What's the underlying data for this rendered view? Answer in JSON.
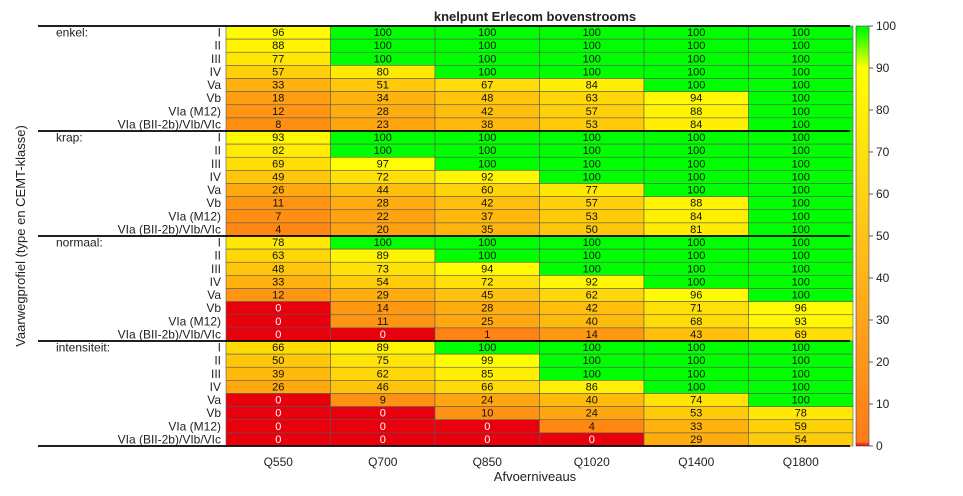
{
  "chart_data": {
    "type": "heatmap",
    "title": "knelpunt Erlecom bovenstrooms",
    "xlabel": "Afvoerniveaus",
    "ylabel": "Vaarwegprofiel (type en CEMT-klasse)",
    "categories": [
      "Q550",
      "Q700",
      "Q850",
      "Q1020",
      "Q1400",
      "Q1800"
    ],
    "colorbar": {
      "min": 0,
      "max": 100,
      "ticks": [
        0,
        10,
        20,
        30,
        40,
        50,
        60,
        70,
        80,
        90,
        100
      ],
      "colors": [
        "#e8000d",
        "#ff8c1a",
        "#ffff00",
        "#00ff00"
      ]
    },
    "groups": [
      {
        "name": "enkel:",
        "rows": [
          {
            "label": "I",
            "values": [
              96,
              100,
              100,
              100,
              100,
              100
            ]
          },
          {
            "label": "II",
            "values": [
              88,
              100,
              100,
              100,
              100,
              100
            ]
          },
          {
            "label": "III",
            "values": [
              77,
              100,
              100,
              100,
              100,
              100
            ]
          },
          {
            "label": "IV",
            "values": [
              57,
              80,
              100,
              100,
              100,
              100
            ]
          },
          {
            "label": "Va",
            "values": [
              33,
              51,
              67,
              84,
              100,
              100
            ]
          },
          {
            "label": "Vb",
            "values": [
              18,
              34,
              48,
              63,
              94,
              100
            ]
          },
          {
            "label": "VIa (M12)",
            "values": [
              12,
              28,
              42,
              57,
              88,
              100
            ]
          },
          {
            "label": "VIa (BII-2b)/VIb/VIc",
            "values": [
              8,
              23,
              38,
              53,
              84,
              100
            ]
          }
        ]
      },
      {
        "name": "krap:",
        "rows": [
          {
            "label": "I",
            "values": [
              93,
              100,
              100,
              100,
              100,
              100
            ]
          },
          {
            "label": "II",
            "values": [
              82,
              100,
              100,
              100,
              100,
              100
            ]
          },
          {
            "label": "III",
            "values": [
              69,
              97,
              100,
              100,
              100,
              100
            ]
          },
          {
            "label": "IV",
            "values": [
              49,
              72,
              92,
              100,
              100,
              100
            ]
          },
          {
            "label": "Va",
            "values": [
              26,
              44,
              60,
              77,
              100,
              100
            ]
          },
          {
            "label": "Vb",
            "values": [
              11,
              28,
              42,
              57,
              88,
              100
            ]
          },
          {
            "label": "VIa (M12)",
            "values": [
              7,
              22,
              37,
              53,
              84,
              100
            ]
          },
          {
            "label": "VIa (BII-2b)/VIb/VIc",
            "values": [
              4,
              20,
              35,
              50,
              81,
              100
            ]
          }
        ]
      },
      {
        "name": "normaal:",
        "rows": [
          {
            "label": "I",
            "values": [
              78,
              100,
              100,
              100,
              100,
              100
            ]
          },
          {
            "label": "II",
            "values": [
              63,
              89,
              100,
              100,
              100,
              100
            ]
          },
          {
            "label": "III",
            "values": [
              48,
              73,
              94,
              100,
              100,
              100
            ]
          },
          {
            "label": "IV",
            "values": [
              33,
              54,
              72,
              92,
              100,
              100
            ]
          },
          {
            "label": "Va",
            "values": [
              12,
              29,
              45,
              62,
              96,
              100
            ]
          },
          {
            "label": "Vb",
            "values": [
              0,
              14,
              28,
              42,
              71,
              96
            ]
          },
          {
            "label": "VIa (M12)",
            "values": [
              0,
              11,
              25,
              40,
              68,
              93
            ]
          },
          {
            "label": "VIa (BII-2b)/VIb/VIc",
            "values": [
              0,
              0,
              1,
              14,
              43,
              69
            ]
          }
        ]
      },
      {
        "name": "intensiteit:",
        "rows": [
          {
            "label": "I",
            "values": [
              66,
              89,
              100,
              100,
              100,
              100
            ]
          },
          {
            "label": "II",
            "values": [
              50,
              75,
              99,
              100,
              100,
              100
            ]
          },
          {
            "label": "III",
            "values": [
              39,
              62,
              85,
              100,
              100,
              100
            ]
          },
          {
            "label": "IV",
            "values": [
              26,
              46,
              66,
              86,
              100,
              100
            ]
          },
          {
            "label": "Va",
            "values": [
              0,
              9,
              24,
              40,
              74,
              100
            ]
          },
          {
            "label": "Vb",
            "values": [
              0,
              0,
              10,
              24,
              53,
              78
            ]
          },
          {
            "label": "VIa (M12)",
            "values": [
              0,
              0,
              0,
              4,
              33,
              59
            ]
          },
          {
            "label": "VIa (BII-2b)/VIb/VIc",
            "values": [
              0,
              0,
              0,
              0,
              29,
              54
            ]
          }
        ]
      }
    ]
  }
}
